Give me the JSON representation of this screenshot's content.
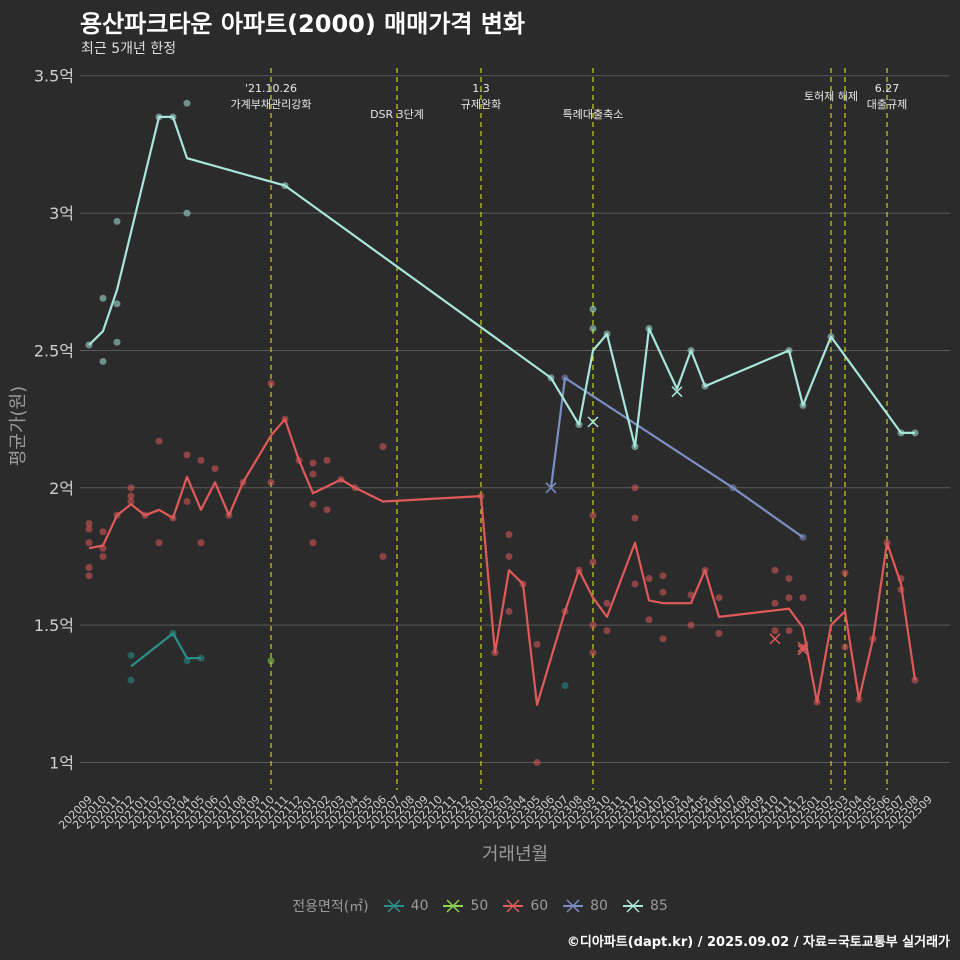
{
  "header": {
    "title": "용산파크타운 아파트(2000) 매매가격 변화",
    "subtitle": "최근 5개년 한정"
  },
  "caption": "©디아파트(dapt.kr) / 2025.09.02 / 자료=국토교통부 실거래가",
  "colors": {
    "background": "#2b2b2b",
    "grid": "#5a5a5a",
    "event_line": "#c8d41c",
    "s40": "#2a8f8c",
    "s50": "#8fd44a",
    "s60": "#e05a5a",
    "s80": "#7b8fc4",
    "s85": "#a8e6dc"
  },
  "legend": {
    "title": "전용면적(㎡)",
    "items": [
      {
        "label": "40",
        "color_key": "s40"
      },
      {
        "label": "50",
        "color_key": "s50"
      },
      {
        "label": "60",
        "color_key": "s60"
      },
      {
        "label": "80",
        "color_key": "s80"
      },
      {
        "label": "85",
        "color_key": "s85"
      }
    ]
  },
  "chart_data": {
    "type": "line",
    "title": "용산파크타운 아파트(2000) 매매가격 변화",
    "xlabel": "거래년월",
    "ylabel": "평균가(원)",
    "ylim": [
      0.9,
      3.55
    ],
    "y_ticks": [
      {
        "value": 1,
        "label": "1억"
      },
      {
        "value": 1.5,
        "label": "1.5억"
      },
      {
        "value": 2,
        "label": "2억"
      },
      {
        "value": 2.5,
        "label": "2.5억"
      },
      {
        "value": 3,
        "label": "3억"
      },
      {
        "value": 3.5,
        "label": "3.5억"
      }
    ],
    "x_categories": [
      "202009",
      "202010",
      "202011",
      "202012",
      "202101",
      "202102",
      "202103",
      "202104",
      "202105",
      "202106",
      "202107",
      "202108",
      "202109",
      "202110",
      "202111",
      "202112",
      "202201",
      "202202",
      "202203",
      "202204",
      "202205",
      "202206",
      "202207",
      "202208",
      "202209",
      "202210",
      "202211",
      "202212",
      "202301",
      "202302",
      "202303",
      "202304",
      "202305",
      "202306",
      "202307",
      "202308",
      "202309",
      "202310",
      "202311",
      "202312",
      "202401",
      "202402",
      "202403",
      "202404",
      "202405",
      "202406",
      "202407",
      "202408",
      "202409",
      "202410",
      "202411",
      "202412",
      "202501",
      "202502",
      "202503",
      "202504",
      "202505",
      "202506",
      "202507",
      "202508",
      "202509"
    ],
    "events": [
      {
        "x": "202110",
        "lines": [
          "'21.10.26",
          "가계부채관리강화"
        ],
        "level": 1
      },
      {
        "x": "202207",
        "lines": [
          "DSR 3단계"
        ],
        "level": 2
      },
      {
        "x": "202301",
        "lines": [
          "1.3",
          "규제완화"
        ],
        "level": 1
      },
      {
        "x": "202309",
        "lines": [
          "특례대출축소"
        ],
        "level": 2
      },
      {
        "x": "202502",
        "lines": [
          "토허제 해제"
        ],
        "level": 0
      },
      {
        "x": "202503",
        "lines": [],
        "level": 0
      },
      {
        "x": "202506",
        "lines": [
          "6.27",
          "대출규제"
        ],
        "level": 1
      }
    ],
    "series": [
      {
        "name": "40",
        "color_key": "s40",
        "line": [
          [
            "202012",
            1.35
          ],
          [
            "202103",
            1.47
          ],
          [
            "202104",
            1.38
          ],
          [
            "202105",
            1.38
          ]
        ],
        "points": [
          [
            "202012",
            1.39
          ],
          [
            "202012",
            1.3
          ],
          [
            "202103",
            1.47
          ],
          [
            "202104",
            1.37
          ],
          [
            "202105",
            1.38
          ],
          [
            "202307",
            1.28
          ]
        ],
        "cross": []
      },
      {
        "name": "50",
        "color_key": "s50",
        "line": [],
        "points": [
          [
            "202110",
            1.37
          ]
        ],
        "cross": []
      },
      {
        "name": "60",
        "color_key": "s60",
        "line": [
          [
            "202009",
            1.78
          ],
          [
            "202010",
            1.79
          ],
          [
            "202011",
            1.9
          ],
          [
            "202012",
            1.94
          ],
          [
            "202101",
            1.9
          ],
          [
            "202102",
            1.92
          ],
          [
            "202103",
            1.89
          ],
          [
            "202104",
            2.04
          ],
          [
            "202105",
            1.92
          ],
          [
            "202106",
            2.02
          ],
          [
            "202107",
            1.9
          ],
          [
            "202108",
            2.02
          ],
          [
            "202110",
            2.19
          ],
          [
            "202111",
            2.25
          ],
          [
            "202112",
            2.1
          ],
          [
            "202201",
            1.98
          ],
          [
            "202203",
            2.03
          ],
          [
            "202204",
            2.0
          ],
          [
            "202206",
            1.95
          ],
          [
            "202301",
            1.97
          ],
          [
            "202302",
            1.4
          ],
          [
            "202303",
            1.7
          ],
          [
            "202304",
            1.65
          ],
          [
            "202305",
            1.21
          ],
          [
            "202307",
            1.55
          ],
          [
            "202308",
            1.7
          ],
          [
            "202309",
            1.6
          ],
          [
            "202310",
            1.53
          ],
          [
            "202312",
            1.8
          ],
          [
            "202401",
            1.59
          ],
          [
            "202402",
            1.58
          ],
          [
            "202404",
            1.58
          ],
          [
            "202405",
            1.7
          ],
          [
            "202406",
            1.53
          ],
          [
            "202411",
            1.56
          ],
          [
            "202412",
            1.49
          ],
          [
            "202501",
            1.22
          ],
          [
            "202502",
            1.5
          ],
          [
            "202503",
            1.55
          ],
          [
            "202504",
            1.23
          ],
          [
            "202505",
            1.45
          ],
          [
            "202506",
            1.8
          ],
          [
            "202507",
            1.65
          ],
          [
            "202508",
            1.3
          ]
        ],
        "points": [
          [
            "202009",
            1.87
          ],
          [
            "202009",
            1.85
          ],
          [
            "202009",
            1.8
          ],
          [
            "202009",
            1.71
          ],
          [
            "202009",
            1.68
          ],
          [
            "202010",
            1.84
          ],
          [
            "202010",
            1.78
          ],
          [
            "202010",
            1.75
          ],
          [
            "202011",
            1.9
          ],
          [
            "202012",
            2.0
          ],
          [
            "202012",
            1.97
          ],
          [
            "202012",
            1.95
          ],
          [
            "202101",
            1.9
          ],
          [
            "202102",
            2.17
          ],
          [
            "202102",
            1.8
          ],
          [
            "202103",
            1.89
          ],
          [
            "202104",
            2.12
          ],
          [
            "202104",
            1.95
          ],
          [
            "202105",
            2.1
          ],
          [
            "202105",
            1.8
          ],
          [
            "202106",
            2.07
          ],
          [
            "202107",
            1.9
          ],
          [
            "202108",
            2.02
          ],
          [
            "202110",
            2.38
          ],
          [
            "202110",
            2.02
          ],
          [
            "202111",
            2.25
          ],
          [
            "202112",
            2.1
          ],
          [
            "202201",
            2.09
          ],
          [
            "202201",
            2.05
          ],
          [
            "202201",
            1.94
          ],
          [
            "202201",
            1.8
          ],
          [
            "202202",
            2.1
          ],
          [
            "202202",
            1.92
          ],
          [
            "202203",
            2.03
          ],
          [
            "202204",
            2.0
          ],
          [
            "202206",
            2.15
          ],
          [
            "202206",
            1.75
          ],
          [
            "202301",
            1.97
          ],
          [
            "202302",
            1.4
          ],
          [
            "202303",
            1.83
          ],
          [
            "202303",
            1.75
          ],
          [
            "202303",
            1.55
          ],
          [
            "202304",
            1.65
          ],
          [
            "202305",
            1.43
          ],
          [
            "202305",
            1.0
          ],
          [
            "202307",
            1.55
          ],
          [
            "202308",
            1.7
          ],
          [
            "202309",
            1.9
          ],
          [
            "202309",
            1.73
          ],
          [
            "202309",
            1.5
          ],
          [
            "202309",
            1.4
          ],
          [
            "202310",
            1.58
          ],
          [
            "202310",
            1.48
          ],
          [
            "202312",
            2.0
          ],
          [
            "202312",
            1.89
          ],
          [
            "202312",
            1.65
          ],
          [
            "202401",
            1.67
          ],
          [
            "202401",
            1.52
          ],
          [
            "202402",
            1.68
          ],
          [
            "202402",
            1.62
          ],
          [
            "202402",
            1.45
          ],
          [
            "202404",
            1.61
          ],
          [
            "202404",
            1.5
          ],
          [
            "202405",
            1.7
          ],
          [
            "202406",
            1.6
          ],
          [
            "202406",
            1.47
          ],
          [
            "202410",
            1.7
          ],
          [
            "202410",
            1.58
          ],
          [
            "202410",
            1.48
          ],
          [
            "202411",
            1.67
          ],
          [
            "202411",
            1.6
          ],
          [
            "202411",
            1.48
          ],
          [
            "202412",
            1.6
          ],
          [
            "202412",
            1.42
          ],
          [
            "202501",
            1.22
          ],
          [
            "202503",
            1.69
          ],
          [
            "202503",
            1.42
          ],
          [
            "202504",
            1.23
          ],
          [
            "202505",
            1.45
          ],
          [
            "202506",
            1.8
          ],
          [
            "202507",
            1.67
          ],
          [
            "202507",
            1.63
          ],
          [
            "202508",
            1.3
          ]
        ],
        "cross": [
          [
            "202410",
            1.45
          ],
          [
            "202412",
            1.41
          ],
          [
            "202412",
            1.42
          ]
        ]
      },
      {
        "name": "80",
        "color_key": "s80",
        "line": [
          [
            "202306",
            2.0
          ],
          [
            "202307",
            2.4
          ],
          [
            "202407",
            2.0
          ],
          [
            "202412",
            1.82
          ]
        ],
        "points": [
          [
            "202307",
            2.4
          ],
          [
            "202407",
            2.0
          ],
          [
            "202412",
            1.82
          ]
        ],
        "cross": [
          [
            "202306",
            2.0
          ]
        ]
      },
      {
        "name": "85",
        "color_key": "s85",
        "line": [
          [
            "202009",
            2.52
          ],
          [
            "202010",
            2.57
          ],
          [
            "202011",
            2.72
          ],
          [
            "202102",
            3.35
          ],
          [
            "202103",
            3.35
          ],
          [
            "202104",
            3.2
          ],
          [
            "202111",
            3.1
          ],
          [
            "202306",
            2.4
          ],
          [
            "202308",
            2.23
          ],
          [
            "202309",
            2.5
          ],
          [
            "202310",
            2.56
          ],
          [
            "202312",
            2.15
          ],
          [
            "202401",
            2.58
          ],
          [
            "202403",
            2.36
          ],
          [
            "202404",
            2.5
          ],
          [
            "202405",
            2.37
          ],
          [
            "202411",
            2.5
          ],
          [
            "202412",
            2.3
          ],
          [
            "202502",
            2.55
          ],
          [
            "202507",
            2.2
          ],
          [
            "202508",
            2.2
          ]
        ],
        "points": [
          [
            "202009",
            2.52
          ],
          [
            "202010",
            2.69
          ],
          [
            "202010",
            2.46
          ],
          [
            "202011",
            2.97
          ],
          [
            "202011",
            2.67
          ],
          [
            "202011",
            2.53
          ],
          [
            "202102",
            3.35
          ],
          [
            "202103",
            3.35
          ],
          [
            "202104",
            3.4
          ],
          [
            "202104",
            3.0
          ],
          [
            "202111",
            3.1
          ],
          [
            "202306",
            2.4
          ],
          [
            "202308",
            2.23
          ],
          [
            "202309",
            2.65
          ],
          [
            "202309",
            2.58
          ],
          [
            "202310",
            2.56
          ],
          [
            "202312",
            2.15
          ],
          [
            "202401",
            2.58
          ],
          [
            "202404",
            2.5
          ],
          [
            "202405",
            2.37
          ],
          [
            "202411",
            2.5
          ],
          [
            "202412",
            2.3
          ],
          [
            "202502",
            2.55
          ],
          [
            "202507",
            2.2
          ],
          [
            "202508",
            2.2
          ]
        ],
        "cross": [
          [
            "202309",
            2.24
          ],
          [
            "202403",
            2.35
          ]
        ]
      }
    ]
  }
}
